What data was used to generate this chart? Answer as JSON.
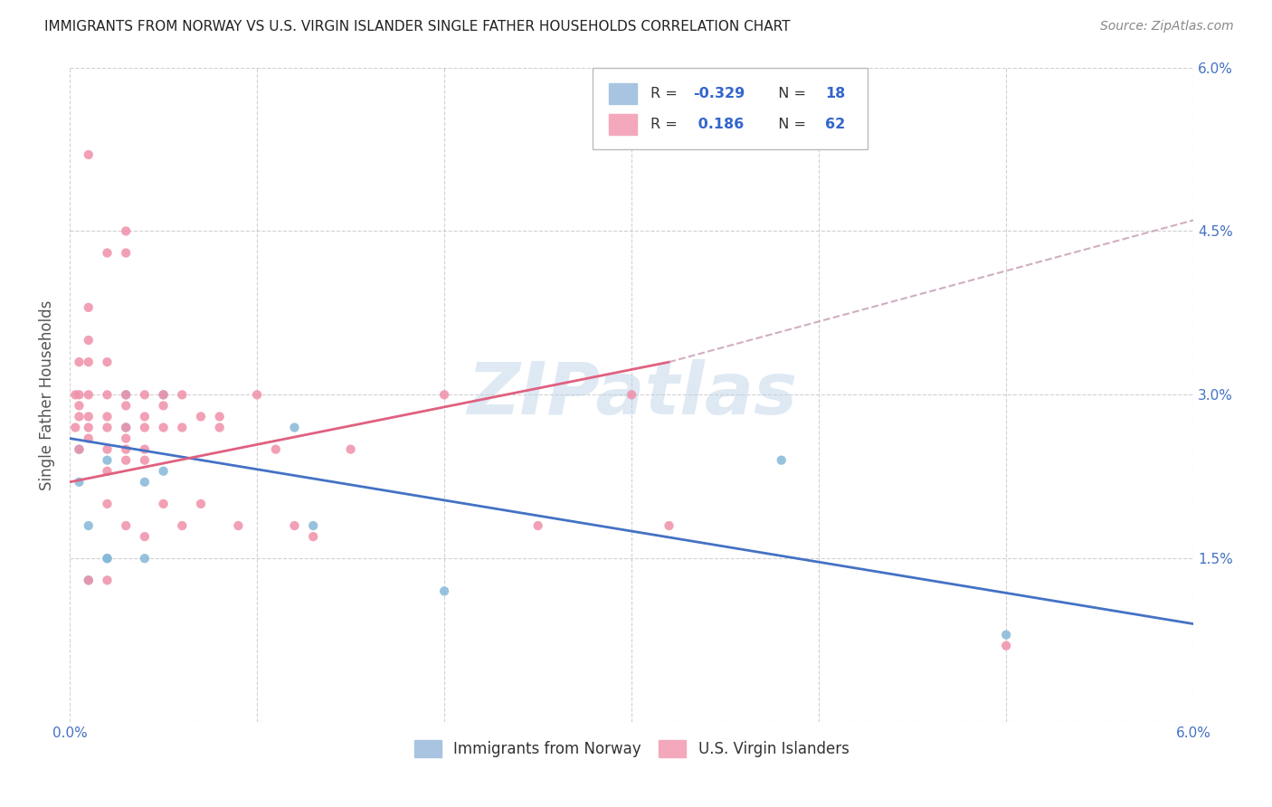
{
  "title": "IMMIGRANTS FROM NORWAY VS U.S. VIRGIN ISLANDER SINGLE FATHER HOUSEHOLDS CORRELATION CHART",
  "source": "Source: ZipAtlas.com",
  "ylabel": "Single Father Households",
  "xlim": [
    0.0,
    0.06
  ],
  "ylim": [
    0.0,
    0.06
  ],
  "ytick_positions": [
    0.0,
    0.015,
    0.03,
    0.045,
    0.06
  ],
  "xtick_positions": [
    0.0,
    0.01,
    0.02,
    0.03,
    0.04,
    0.05,
    0.06
  ],
  "right_ytick_labels": [
    "",
    "1.5%",
    "3.0%",
    "4.5%",
    "6.0%"
  ],
  "xtick_labels": [
    "0.0%",
    "",
    "",
    "",
    "",
    "",
    "6.0%"
  ],
  "legend_r1": "R = -0.329",
  "legend_n1": "N = 18",
  "legend_r2": "R =  0.186",
  "legend_n2": "N = 62",
  "blue_scatter_x": [
    0.0005,
    0.0005,
    0.001,
    0.001,
    0.002,
    0.002,
    0.002,
    0.003,
    0.003,
    0.004,
    0.004,
    0.005,
    0.005,
    0.012,
    0.013,
    0.02,
    0.038,
    0.05
  ],
  "blue_scatter_y": [
    0.025,
    0.022,
    0.018,
    0.013,
    0.024,
    0.015,
    0.015,
    0.03,
    0.027,
    0.022,
    0.015,
    0.03,
    0.023,
    0.027,
    0.018,
    0.012,
    0.024,
    0.008
  ],
  "pink_scatter_x": [
    0.0003,
    0.0003,
    0.0005,
    0.0005,
    0.0005,
    0.0005,
    0.0005,
    0.001,
    0.001,
    0.001,
    0.001,
    0.001,
    0.001,
    0.001,
    0.001,
    0.001,
    0.002,
    0.002,
    0.002,
    0.002,
    0.002,
    0.002,
    0.002,
    0.002,
    0.002,
    0.003,
    0.003,
    0.003,
    0.003,
    0.003,
    0.003,
    0.003,
    0.003,
    0.003,
    0.004,
    0.004,
    0.004,
    0.004,
    0.004,
    0.004,
    0.005,
    0.005,
    0.005,
    0.005,
    0.006,
    0.006,
    0.006,
    0.007,
    0.007,
    0.008,
    0.008,
    0.009,
    0.01,
    0.011,
    0.012,
    0.013,
    0.015,
    0.02,
    0.025,
    0.03,
    0.032,
    0.05
  ],
  "pink_scatter_y": [
    0.03,
    0.027,
    0.033,
    0.03,
    0.029,
    0.028,
    0.025,
    0.052,
    0.038,
    0.035,
    0.033,
    0.03,
    0.028,
    0.027,
    0.026,
    0.013,
    0.043,
    0.033,
    0.03,
    0.028,
    0.027,
    0.025,
    0.023,
    0.02,
    0.013,
    0.045,
    0.043,
    0.03,
    0.029,
    0.027,
    0.026,
    0.025,
    0.024,
    0.018,
    0.03,
    0.028,
    0.027,
    0.025,
    0.024,
    0.017,
    0.03,
    0.029,
    0.027,
    0.02,
    0.03,
    0.027,
    0.018,
    0.028,
    0.02,
    0.028,
    0.027,
    0.018,
    0.03,
    0.025,
    0.018,
    0.017,
    0.025,
    0.03,
    0.018,
    0.03,
    0.018,
    0.007
  ],
  "blue_line_x": [
    0.0,
    0.06
  ],
  "blue_line_y": [
    0.026,
    0.009
  ],
  "pink_solid_line_x": [
    0.0,
    0.032
  ],
  "pink_solid_line_y": [
    0.022,
    0.033
  ],
  "pink_dashed_line_x": [
    0.032,
    0.06
  ],
  "pink_dashed_line_y": [
    0.033,
    0.046
  ],
  "watermark": "ZIPatlas",
  "scatter_size": 55,
  "blue_color": "#85b8d8",
  "pink_color": "#f090a8",
  "blue_line_color": "#4472c4",
  "pink_line_color": "#e06080",
  "pink_dash_color": "#c8a0b8",
  "grid_color": "#cccccc",
  "background_color": "#ffffff"
}
